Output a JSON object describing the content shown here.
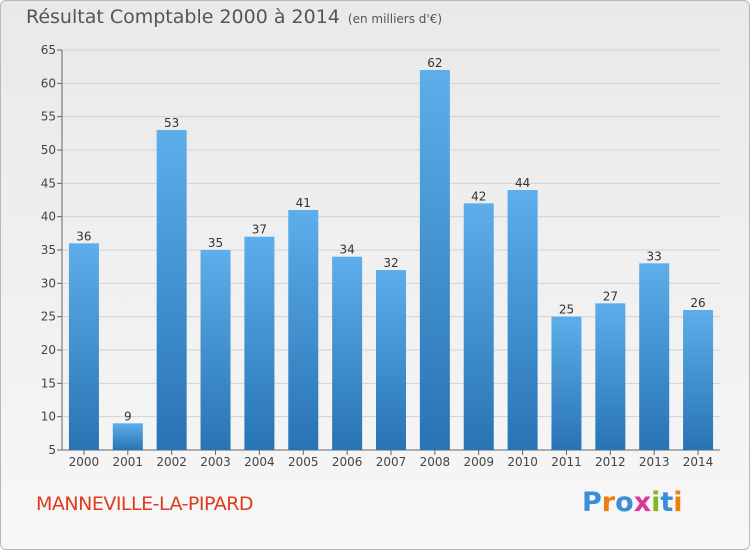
{
  "title": "Résultat Comptable 2000 à 2014",
  "subtitle": "(en milliers d'€)",
  "commune": "MANNEVILLE-LA-PIPARD",
  "logo": {
    "text": "Proxiti",
    "letters": [
      "P",
      "r",
      "o",
      "x",
      "i",
      "t",
      "i"
    ],
    "colors": [
      "#3a8ed8",
      "#f07d12",
      "#3a8ed8",
      "#d63a9a",
      "#7fb824",
      "#3a8ed8",
      "#f07d12"
    ]
  },
  "colors": {
    "bar_light": "#5daeea",
    "bar_dark": "#2873b4",
    "commune": "#e03a1e"
  },
  "chart_data": {
    "type": "bar",
    "categories": [
      "2000",
      "2001",
      "2002",
      "2003",
      "2004",
      "2005",
      "2006",
      "2007",
      "2008",
      "2009",
      "2010",
      "2011",
      "2012",
      "2013",
      "2014"
    ],
    "values": [
      36,
      9,
      53,
      35,
      37,
      41,
      34,
      32,
      62,
      42,
      44,
      25,
      27,
      33,
      26
    ],
    "ylim": [
      5,
      65
    ],
    "yticks": [
      5,
      10,
      15,
      20,
      25,
      30,
      35,
      40,
      45,
      50,
      55,
      60,
      65
    ],
    "title": "Résultat Comptable 2000 à 2014",
    "ylabel": "",
    "xlabel": ""
  }
}
